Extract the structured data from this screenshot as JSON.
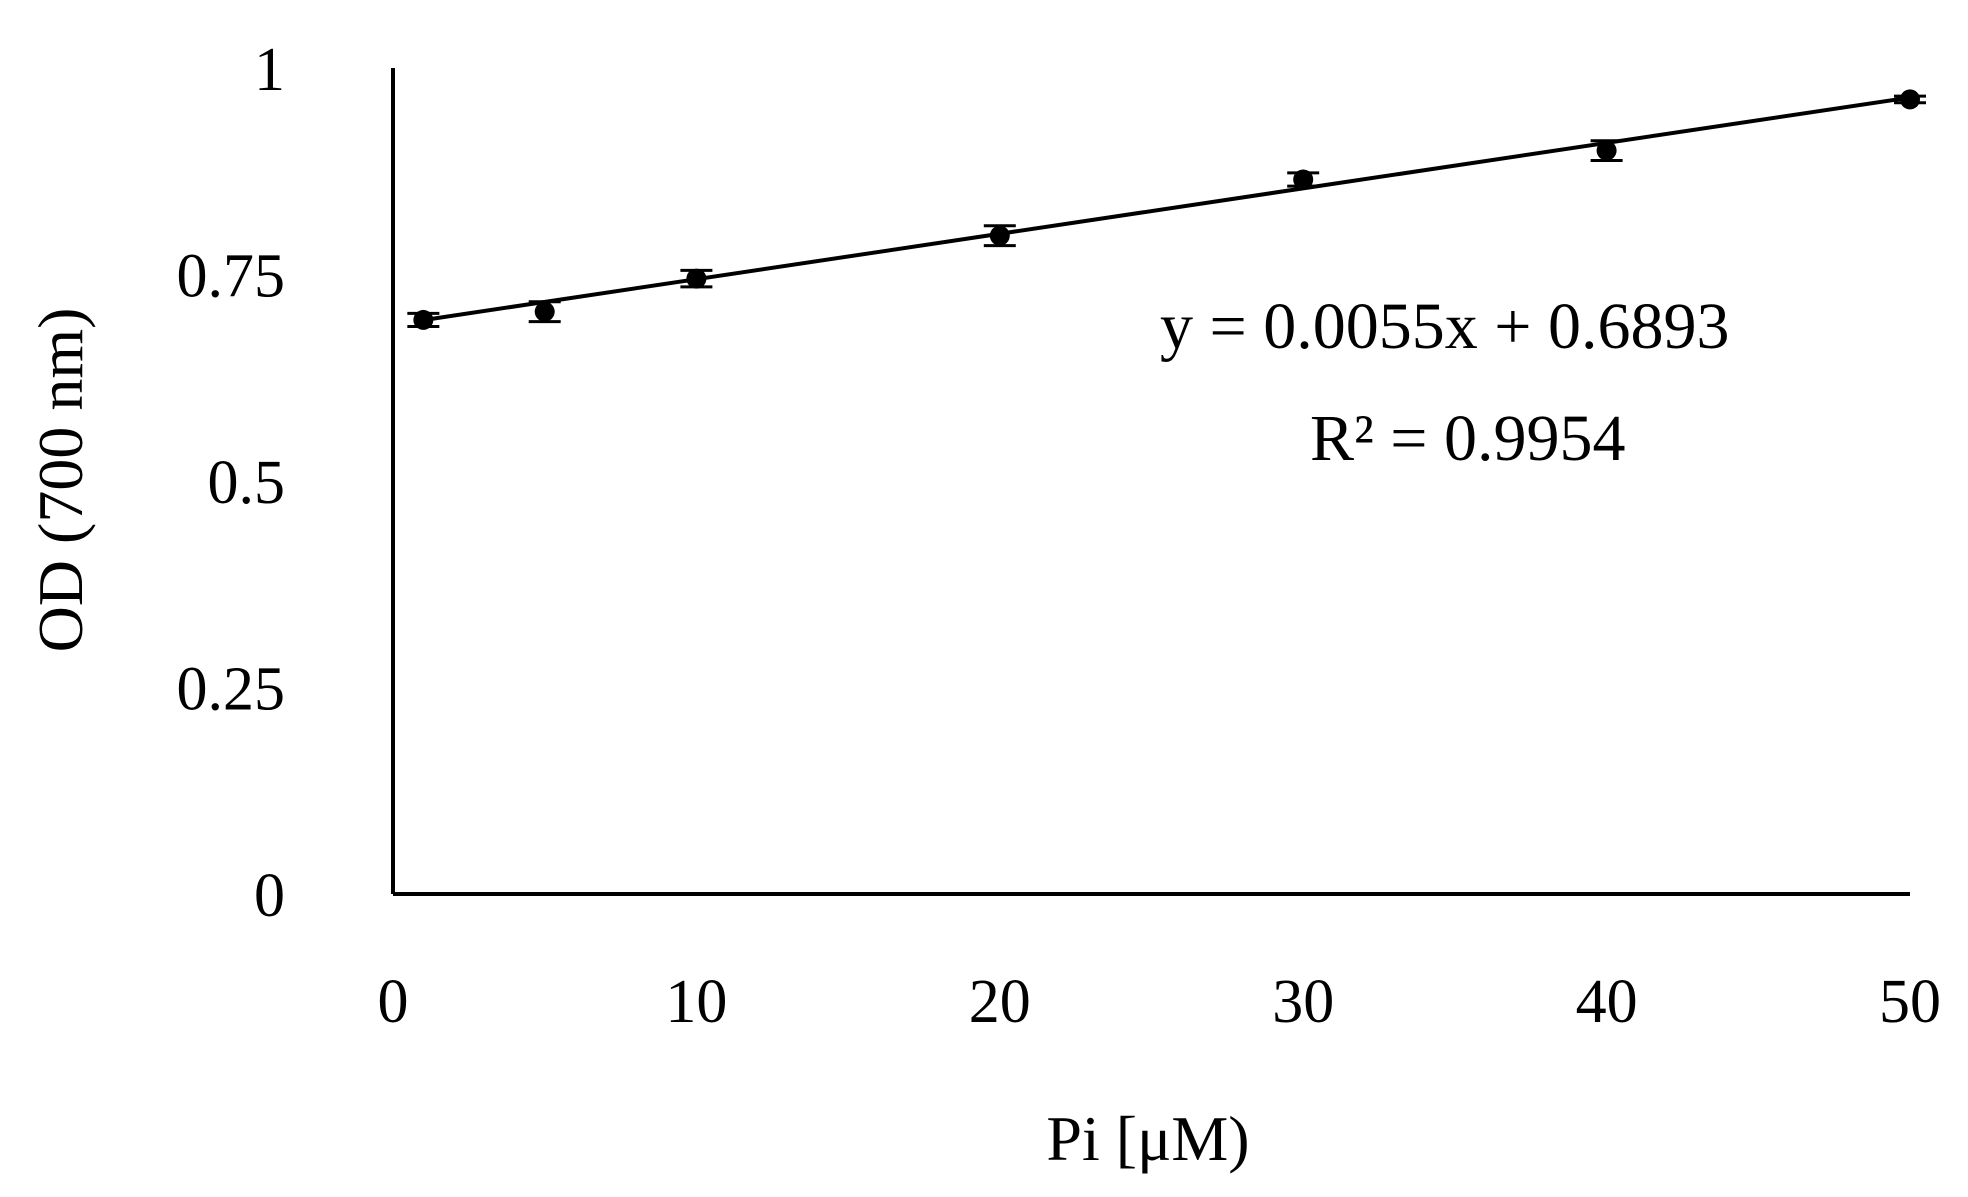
{
  "chart_data": {
    "type": "scatter",
    "xlabel": "Pi [μM)",
    "ylabel": "OD (700 nm)",
    "xlim": [
      0,
      50
    ],
    "ylim": [
      0,
      1
    ],
    "x_ticks": [
      "0",
      "10",
      "20",
      "30",
      "40",
      "50"
    ],
    "y_ticks": [
      "0",
      "0.25",
      "0.5",
      "0.75",
      "1"
    ],
    "grid": false,
    "legend": "none",
    "series": [
      {
        "x": [
          1,
          5,
          10,
          20,
          30,
          40,
          50
        ],
        "y": [
          0.695,
          0.705,
          0.745,
          0.797,
          0.865,
          0.9,
          0.962
        ],
        "error": [
          0.008,
          0.012,
          0.01,
          0.012,
          0.008,
          0.012,
          0.004
        ],
        "color": "#000000"
      }
    ],
    "trendline": {
      "type": "linear",
      "slope": 0.0055,
      "intercept": 0.6893,
      "x_range": [
        1,
        50
      ],
      "equation_label": "y = 0.0055x + 0.6893",
      "r2_label": "R² = 0.9954"
    }
  }
}
